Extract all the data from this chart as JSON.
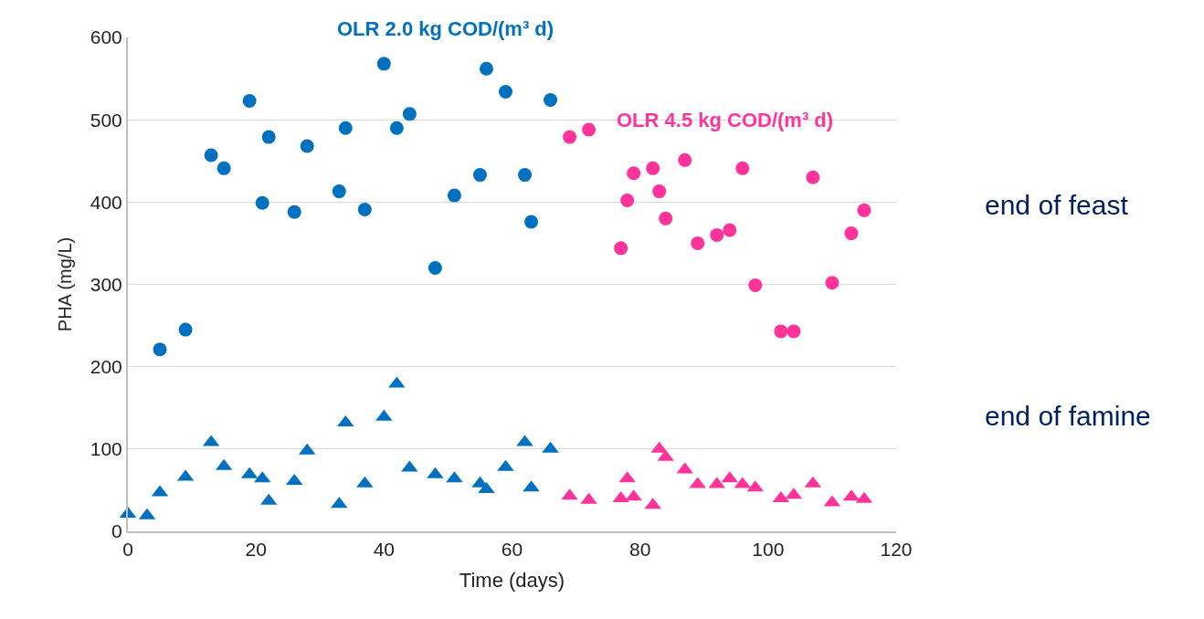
{
  "chart_data": {
    "type": "scatter",
    "xlabel": "Time (days)",
    "ylabel": "PHA (mg/L)",
    "xlim": [
      0,
      120
    ],
    "xticks": [
      0,
      20,
      40,
      60,
      80,
      100,
      120
    ],
    "ylim": [
      0,
      600
    ],
    "yticks": [
      0,
      100,
      200,
      300,
      400,
      500,
      600
    ],
    "grid": "y",
    "legend": false,
    "series": [
      {
        "name": "OLR 2.0 kg COD/(m³ d)",
        "color": "#0070c0",
        "marker": "circle",
        "x": [
          5,
          9,
          13,
          15,
          19,
          21,
          22,
          26,
          28,
          33,
          34,
          37,
          40,
          42,
          44,
          48,
          51,
          55,
          56,
          59,
          62,
          63,
          66
        ],
        "values": [
          221,
          245,
          457,
          441,
          523,
          399,
          479,
          388,
          468,
          413,
          490,
          391,
          568,
          490,
          507,
          320,
          408,
          433,
          562,
          534,
          433,
          376,
          524
        ]
      },
      {
        "color": "#0070c0",
        "marker": "triangle",
        "x": [
          0,
          3,
          5,
          9,
          13,
          15,
          19,
          21,
          22,
          26,
          28,
          33,
          34,
          37,
          40,
          42,
          44,
          48,
          51,
          55,
          56,
          59,
          62,
          63,
          66
        ],
        "values": [
          21,
          19,
          47,
          66,
          108,
          79,
          69,
          64,
          37,
          61,
          98,
          33,
          132,
          58,
          139,
          179,
          77,
          69,
          64,
          58,
          51,
          78,
          108,
          53,
          100
        ]
      },
      {
        "name": "OLR 4.5 kg COD/(m³ d)",
        "color": "#ff3399",
        "marker": "circle",
        "x": [
          69,
          72,
          77,
          78,
          79,
          82,
          83,
          84,
          87,
          89,
          92,
          94,
          96,
          98,
          102,
          104,
          107,
          110,
          113,
          115
        ],
        "values": [
          479,
          488,
          344,
          402,
          435,
          441,
          413,
          380,
          451,
          350,
          360,
          366,
          441,
          299,
          243,
          243,
          430,
          302,
          362,
          390
        ]
      },
      {
        "color": "#ff3399",
        "marker": "triangle",
        "x": [
          69,
          72,
          77,
          78,
          79,
          82,
          83,
          84,
          87,
          89,
          92,
          94,
          96,
          98,
          102,
          104,
          107,
          110,
          113,
          115
        ],
        "values": [
          43,
          38,
          40,
          64,
          42,
          32,
          100,
          90,
          75,
          57,
          57,
          64,
          57,
          53,
          40,
          44,
          58,
          35,
          42,
          39
        ]
      }
    ],
    "annotations": [
      "end of feast",
      "end of famine"
    ]
  }
}
